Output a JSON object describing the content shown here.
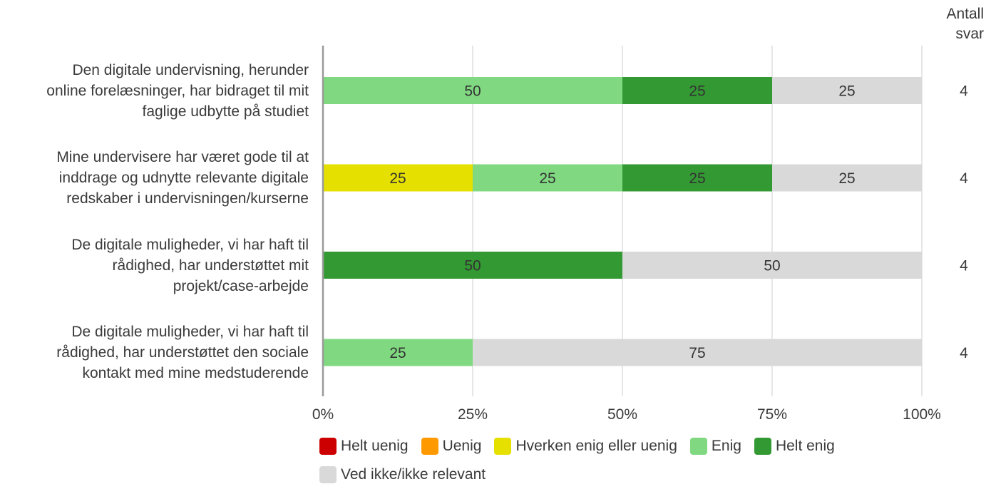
{
  "header": {
    "count_line1": "Antall",
    "count_line2": "svar"
  },
  "legend": [
    {
      "label": "Helt uenig",
      "color": "#cc0000"
    },
    {
      "label": "Uenig",
      "color": "#ff9900"
    },
    {
      "label": "Hverken enig eller uenig",
      "color": "#e6e000"
    },
    {
      "label": "Enig",
      "color": "#80d981"
    },
    {
      "label": "Helt enig",
      "color": "#339933"
    },
    {
      "label": "Ved ikke/ikke relevant",
      "color": "#d9d9d9"
    }
  ],
  "chart_data": {
    "type": "bar",
    "orientation": "horizontal",
    "stacked": true,
    "categories": [
      "Den digitale undervisning, herunder online forelæsninger, har bidraget til mit faglige udbytte på studiet",
      "Mine undervisere har været gode til at inddrage og udnytte relevante digitale redskaber i undervisningen/kurserne",
      "De digitale muligheder, vi har haft til rådighed, har understøttet mit projekt/case-arbejde",
      "De digitale muligheder, vi har haft til rådighed, har understøttet den sociale kontakt med mine medstuderende"
    ],
    "category_lines": [
      [
        "Den digitale undervisning, herunder",
        "online forelæsninger, har bidraget til mit",
        "faglige udbytte på studiet"
      ],
      [
        "Mine undervisere har været gode til at",
        "inddrage og udnytte relevante digitale",
        "redskaber i undervisningen/kurserne"
      ],
      [
        "De digitale muligheder, vi har haft til",
        "rådighed, har understøttet mit",
        "projekt/case-arbejde"
      ],
      [
        "De digitale muligheder, vi har haft til",
        "rådighed, har understøttet den sociale",
        "kontakt med mine medstuderende"
      ]
    ],
    "series": [
      {
        "name": "Helt uenig",
        "color": "#cc0000",
        "values": [
          0,
          0,
          0,
          0
        ]
      },
      {
        "name": "Uenig",
        "color": "#ff9900",
        "values": [
          0,
          0,
          0,
          0
        ]
      },
      {
        "name": "Hverken enig eller uenig",
        "color": "#e6e000",
        "values": [
          0,
          25,
          0,
          0
        ]
      },
      {
        "name": "Enig",
        "color": "#80d981",
        "values": [
          50,
          25,
          0,
          25
        ]
      },
      {
        "name": "Helt enig",
        "color": "#339933",
        "values": [
          25,
          25,
          50,
          0
        ]
      },
      {
        "name": "Ved ikke/ikke relevant",
        "color": "#d9d9d9",
        "values": [
          25,
          25,
          50,
          75
        ]
      }
    ],
    "counts": [
      "4",
      "4",
      "4",
      "4"
    ],
    "x_ticks": [
      "0%",
      "25%",
      "50%",
      "75%",
      "100%"
    ],
    "xlim": [
      0,
      100
    ],
    "grid": true,
    "legend_position": "bottom"
  }
}
